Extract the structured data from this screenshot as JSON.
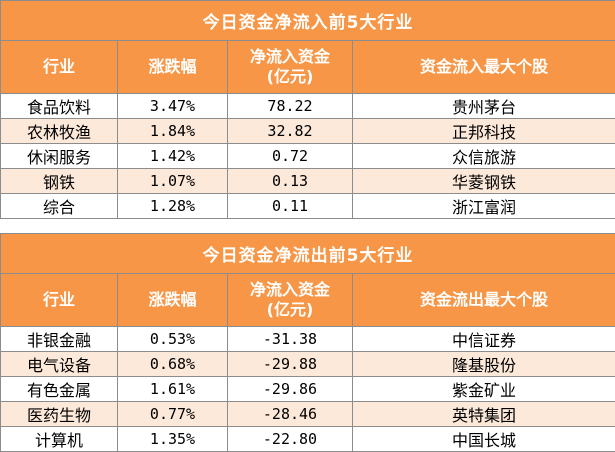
{
  "inflow": {
    "title": "今日资金净流入前5大行业",
    "headers": [
      "行业",
      "涨跌幅",
      "净流入资金",
      "(亿元)",
      "资金流入最大个股"
    ],
    "rows": [
      {
        "industry": "食品饮料",
        "change": "3.47%",
        "net": "78.22",
        "top_stock": "贵州茅台"
      },
      {
        "industry": "农林牧渔",
        "change": "1.84%",
        "net": "32.82",
        "top_stock": "正邦科技"
      },
      {
        "industry": "休闲服务",
        "change": "1.42%",
        "net": "0.72",
        "top_stock": "众信旅游"
      },
      {
        "industry": "钢铁",
        "change": "1.07%",
        "net": "0.13",
        "top_stock": "华菱钢铁"
      },
      {
        "industry": "综合",
        "change": "1.28%",
        "net": "0.11",
        "top_stock": "浙江富润"
      }
    ]
  },
  "outflow": {
    "title": "今日资金净流出前5大行业",
    "headers": [
      "行业",
      "涨跌幅",
      "净流入资金",
      "(亿元)",
      "资金流出最大个股"
    ],
    "rows": [
      {
        "industry": "非银金融",
        "change": "0.53%",
        "net": "-31.38",
        "top_stock": "中信证券"
      },
      {
        "industry": "电气设备",
        "change": "0.68%",
        "net": "-29.88",
        "top_stock": "隆基股份"
      },
      {
        "industry": "有色金属",
        "change": "1.61%",
        "net": "-29.86",
        "top_stock": "紫金矿业"
      },
      {
        "industry": "医药生物",
        "change": "0.77%",
        "net": "-28.46",
        "top_stock": "英特集团"
      },
      {
        "industry": "计算机",
        "change": "1.35%",
        "net": "-22.80",
        "top_stock": "中国长城"
      }
    ]
  },
  "colors": {
    "header": "#f79646",
    "alt_row": "#fde9d9",
    "border": "#8c8c8c"
  }
}
